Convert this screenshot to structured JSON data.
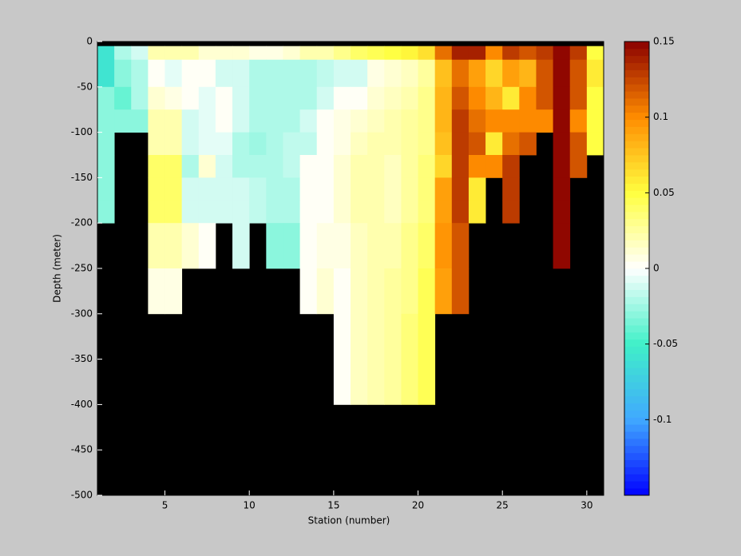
{
  "chart_data": {
    "type": "heatmap",
    "x_label": "Station (number)",
    "y_label": "Depth (meter)",
    "x": [
      1,
      2,
      3,
      4,
      5,
      6,
      7,
      8,
      9,
      10,
      11,
      12,
      13,
      14,
      15,
      16,
      17,
      18,
      19,
      20,
      21,
      22,
      23,
      24,
      25,
      26,
      27,
      28,
      29,
      30,
      31
    ],
    "y": [
      0,
      -5,
      -20,
      -50,
      -75,
      -100,
      -125,
      -150,
      -175,
      -200,
      -250,
      -300,
      -400,
      -500
    ],
    "z": [
      [
        null,
        null,
        null,
        null,
        null,
        null,
        null,
        null,
        null,
        null,
        null,
        null,
        null,
        null,
        null,
        null,
        null,
        null,
        null,
        null,
        null,
        null,
        null,
        null,
        null,
        null,
        null,
        null,
        null,
        null
      ],
      [
        -0.06,
        -0.02,
        -0.01,
        0.02,
        0.02,
        0.02,
        0.01,
        0.01,
        0.01,
        0.005,
        0.005,
        0.01,
        0.02,
        0.02,
        0.03,
        0.04,
        0.045,
        0.05,
        0.055,
        0.065,
        0.11,
        0.14,
        0.14,
        0.1,
        0.13,
        0.12,
        0.13,
        0.15,
        0.13,
        0.05
      ],
      [
        -0.06,
        -0.03,
        -0.02,
        0,
        -0.005,
        0,
        0,
        -0.01,
        -0.01,
        -0.02,
        -0.02,
        -0.02,
        -0.02,
        -0.015,
        -0.01,
        -0.01,
        0.005,
        0.01,
        0.015,
        0.025,
        0.075,
        0.11,
        0.09,
        0.07,
        0.09,
        0.08,
        0.12,
        0.15,
        0.12,
        0.06
      ],
      [
        -0.03,
        -0.04,
        -0.02,
        0.01,
        0.005,
        0,
        -0.005,
        0,
        -0.01,
        -0.02,
        -0.02,
        -0.02,
        -0.02,
        -0.01,
        0,
        0,
        0.01,
        0.015,
        0.02,
        0.03,
        0.08,
        0.12,
        0.1,
        0.08,
        0.06,
        0.1,
        0.12,
        0.15,
        0.12,
        0.05
      ],
      [
        -0.03,
        -0.03,
        -0.03,
        0.02,
        0.02,
        -0.01,
        -0.005,
        0,
        -0.01,
        -0.02,
        -0.02,
        -0.02,
        -0.01,
        0,
        0.005,
        0.01,
        0.015,
        0.02,
        0.025,
        0.03,
        0.08,
        0.13,
        0.11,
        0.1,
        0.1,
        0.1,
        0.1,
        0.15,
        0.1,
        0.05
      ],
      [
        -0.03,
        null,
        null,
        0.02,
        0.02,
        -0.01,
        -0.005,
        -0.005,
        -0.02,
        -0.025,
        -0.02,
        -0.015,
        -0.015,
        0,
        0.005,
        0.015,
        0.02,
        0.02,
        0.025,
        0.03,
        0.075,
        0.13,
        0.12,
        0.06,
        0.11,
        0.12,
        null,
        0.15,
        0.12,
        0.05
      ],
      [
        -0.03,
        null,
        null,
        0.04,
        0.04,
        -0.02,
        0.01,
        -0.01,
        -0.02,
        -0.02,
        -0.02,
        -0.015,
        0,
        0,
        0.01,
        0.02,
        0.02,
        0.015,
        0.025,
        0.035,
        0.07,
        0.13,
        0.1,
        0.1,
        0.13,
        null,
        null,
        0.15,
        0.12,
        null
      ],
      [
        -0.03,
        null,
        null,
        0.04,
        0.04,
        -0.01,
        -0.01,
        -0.01,
        -0.01,
        -0.015,
        -0.02,
        -0.02,
        0,
        0,
        0.01,
        0.02,
        0.02,
        0.015,
        0.025,
        0.035,
        0.09,
        0.13,
        0.06,
        null,
        0.13,
        null,
        null,
        0.15,
        null,
        null
      ],
      [
        -0.03,
        null,
        null,
        0.04,
        0.04,
        -0.01,
        -0.01,
        -0.01,
        -0.01,
        -0.015,
        -0.02,
        -0.02,
        0,
        0,
        0.01,
        0.02,
        0.02,
        0.015,
        0.025,
        0.035,
        0.09,
        0.13,
        0.06,
        null,
        0.13,
        null,
        null,
        0.15,
        null,
        null
      ],
      [
        null,
        null,
        null,
        0.02,
        0.02,
        0.01,
        0,
        null,
        -0.01,
        null,
        -0.03,
        -0.03,
        0,
        0.005,
        0.005,
        0.015,
        0.02,
        0.02,
        0.03,
        0.04,
        0.095,
        0.12,
        null,
        null,
        null,
        null,
        null,
        0.15,
        null,
        null
      ],
      [
        null,
        null,
        null,
        0.005,
        0.005,
        null,
        null,
        null,
        null,
        null,
        null,
        null,
        0,
        0.01,
        0,
        0.015,
        0.02,
        0.025,
        0.03,
        0.045,
        0.09,
        0.12,
        null,
        null,
        null,
        null,
        null,
        null,
        null,
        null
      ],
      [
        null,
        null,
        null,
        null,
        null,
        null,
        null,
        null,
        null,
        null,
        null,
        null,
        null,
        null,
        0,
        0.015,
        0.02,
        0.025,
        0.035,
        0.045,
        null,
        null,
        null,
        null,
        null,
        null,
        null,
        null,
        null,
        null
      ],
      [
        null,
        null,
        null,
        null,
        null,
        null,
        null,
        null,
        null,
        null,
        null,
        null,
        null,
        null,
        null,
        null,
        null,
        null,
        null,
        null,
        null,
        null,
        null,
        null,
        null,
        null,
        null,
        null,
        null,
        null
      ]
    ],
    "xlim": [
      1,
      31
    ],
    "xticks": [
      5,
      10,
      15,
      20,
      25,
      30
    ],
    "ylim": [
      -500,
      0
    ],
    "yticks": [
      -500,
      -450,
      -400,
      -350,
      -300,
      -250,
      -200,
      -150,
      -100,
      -50,
      0
    ],
    "clim": [
      -0.15,
      0.15
    ],
    "cticks": [
      -0.1,
      -0.05,
      0,
      0.05,
      0.1,
      0.15
    ],
    "colormap": [
      "#0000ff",
      "#40a8ff",
      "#40f0c8",
      "#ffffff",
      "#ffff40",
      "#ff8c00",
      "#8b0000"
    ],
    "missing_color": "#000000"
  }
}
